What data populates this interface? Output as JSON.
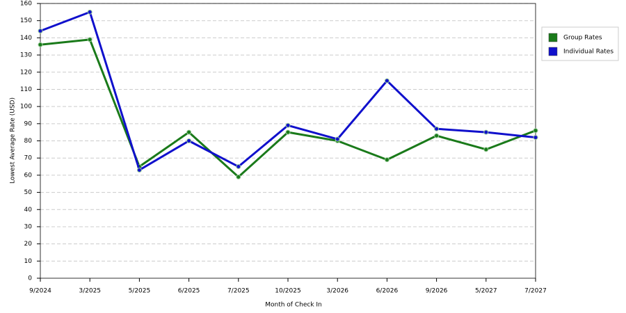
{
  "chart_data": {
    "type": "line",
    "x_label": "Month of Check In",
    "y_label": "Lowest Average Rate (USD)",
    "categories": [
      "9/2024",
      "3/2025",
      "5/2025",
      "6/2025",
      "7/2025",
      "10/2025",
      "3/2026",
      "6/2026",
      "9/2026",
      "5/2027",
      "7/2027"
    ],
    "series": [
      {
        "name": "Group Rates",
        "color": "#1a7a1a",
        "values": [
          136,
          139,
          65,
          85,
          59,
          85,
          80,
          69,
          83,
          75,
          86
        ]
      },
      {
        "name": "Individual Rates",
        "color": "#1010cc",
        "values": [
          144,
          155,
          63,
          80,
          65,
          89,
          81,
          115,
          87,
          85,
          82
        ]
      }
    ],
    "ylim": [
      0,
      160
    ],
    "yticks": [
      0,
      10,
      20,
      30,
      40,
      50,
      60,
      70,
      80,
      90,
      100,
      110,
      120,
      130,
      140,
      150,
      160
    ],
    "grid": true
  }
}
